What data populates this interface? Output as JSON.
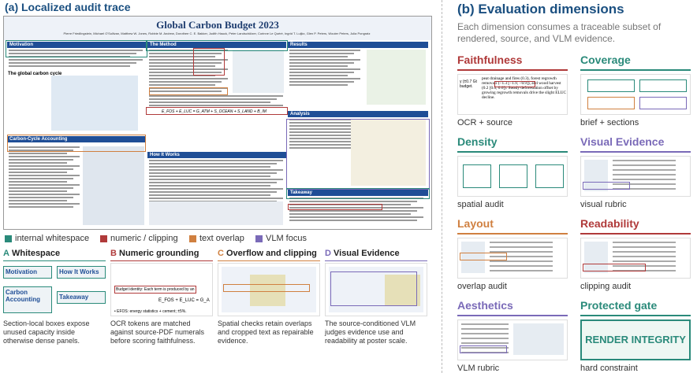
{
  "panel_a": {
    "title": "(a) Localized audit trace",
    "poster": {
      "title": "Global Carbon Budget 2023",
      "authors": "Pierre Friedlingstein, Michael O'Sullivan, Matthew W. Jones, Robbie M. Andrew, Dorothee C. E. Bakker, Judith Hauck, Peter Landschützer, Corinne Le Quéré, Ingrid T. Luijkx, Glen P. Peters, Wouter Peters, Julia Pongratz",
      "sections": [
        {
          "name": "Motivation"
        },
        {
          "name": "The Method"
        },
        {
          "name": "Results"
        },
        {
          "name": "Carbon-Cycle Accounting"
        },
        {
          "name": "How It Works"
        },
        {
          "name": "Analysis"
        },
        {
          "name": "Takeaway"
        }
      ],
      "figure_label": "The global carbon cycle",
      "equation": "E_FOS + E_LUC = G_ATM + S_OCEAN + S_LAND + B_IM"
    },
    "legend": [
      {
        "label": "internal whitespace",
        "color": "#2a8a7a"
      },
      {
        "label": "numeric / clipping",
        "color": "#b03a3a"
      },
      {
        "label": "text overlap",
        "color": "#d08040"
      },
      {
        "label": "VLM focus",
        "color": "#7a6ab8"
      }
    ],
    "subpanels": [
      {
        "letter": "A",
        "title": "Whitespace",
        "color": "#2a8a7a",
        "caption": "Section-local boxes expose unused capacity inside otherwise dense panels.",
        "boxes": [
          "Motivation",
          "How It Works",
          "Carbon Accounting",
          "Takeaway"
        ]
      },
      {
        "letter": "B",
        "title": "Numeric grounding",
        "color": "#b03a3a",
        "caption": "OCR tokens are matched against source-PDF numerals before scoring faithfulness.",
        "snippets": [
          "Budget identity: Each term is produced by an",
          "E_FOS + E_LUC = G_A",
          "• EFOS: energy statistics + cement; ±5%."
        ]
      },
      {
        "letter": "C",
        "title": "Overflow and clipping",
        "color": "#d08040",
        "caption": "Spatial checks retain overlaps and cropped text as repairable evidence."
      },
      {
        "letter": "D",
        "title": "Visual Evidence",
        "color": "#7a6ab8",
        "caption": "The source-conditioned VLM judges evidence use and readability at poster scale."
      }
    ]
  },
  "panel_b": {
    "title": "(b) Evaluation dimensions",
    "subtitle": "Each dimension consumes a traceable subset of rendered, source, and VLM evidence.",
    "dimensions": [
      {
        "name": "Faithfulness",
        "caption": "OCR + source",
        "color": "#b03a3a"
      },
      {
        "name": "Coverage",
        "caption": "brief + sections",
        "color": "#2a8a7a"
      },
      {
        "name": "Density",
        "caption": "spatial audit",
        "color": "#2a8a7a"
      },
      {
        "name": "Visual Evidence",
        "caption": "visual rubric",
        "color": "#7a6ab8"
      },
      {
        "name": "Layout",
        "caption": "overlap audit",
        "color": "#d08040"
      },
      {
        "name": "Readability",
        "caption": "clipping audit",
        "color": "#b03a3a"
      },
      {
        "name": "Aesthetics",
        "caption": "VLM rubric",
        "color": "#7a6ab8"
      },
      {
        "name": "Protected gate",
        "caption": "hard constraint",
        "color": "#2a8a7a",
        "badge": "RENDER INTEGRITY"
      }
    ],
    "faithfulness_snippet": "peat drainage and fires (0.3), forest regrowth removals (−1.3 [−1.9, −0.9]), and wood harvest (0.2 [0.0, 0.6]). Steady deforestation offset by growing regrowth removals drive the slight ELUC decline.",
    "faithfulness_side": "y (±0.7 Gt budget."
  }
}
